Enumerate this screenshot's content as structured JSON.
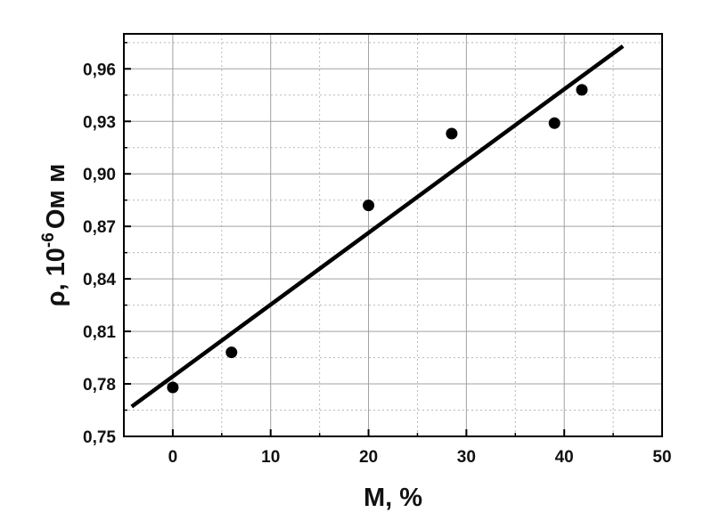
{
  "chart_data": {
    "type": "scatter",
    "title": "",
    "xlabel": "M, %",
    "ylabel": {
      "prefix": "ρ, 10",
      "sup": "-6",
      "suffix": "Ом м"
    },
    "xlim": [
      -5,
      50
    ],
    "ylim": [
      0.75,
      0.98
    ],
    "x_ticks": [
      {
        "value": 0,
        "label": "0"
      },
      {
        "value": 10,
        "label": "10"
      },
      {
        "value": 20,
        "label": "20"
      },
      {
        "value": 30,
        "label": "30"
      },
      {
        "value": 40,
        "label": "40"
      },
      {
        "value": 50,
        "label": "50"
      }
    ],
    "y_ticks": [
      {
        "value": 0.75,
        "label": "0,75"
      },
      {
        "value": 0.78,
        "label": "0,78"
      },
      {
        "value": 0.81,
        "label": "0,81"
      },
      {
        "value": 0.84,
        "label": "0,84"
      },
      {
        "value": 0.87,
        "label": "0,87"
      },
      {
        "value": 0.9,
        "label": "0,90"
      },
      {
        "value": 0.93,
        "label": "0,93"
      },
      {
        "value": 0.96,
        "label": "0,96"
      }
    ],
    "x_minor_grid": [
      -5,
      5,
      15,
      25,
      35,
      45
    ],
    "y_minor_grid": [
      0.765,
      0.795,
      0.825,
      0.855,
      0.885,
      0.915,
      0.945,
      0.975
    ],
    "grid": true,
    "series": [
      {
        "points": [
          {
            "x": 0,
            "y": 0.778
          },
          {
            "x": 6,
            "y": 0.798
          },
          {
            "x": 20,
            "y": 0.882
          },
          {
            "x": 28.5,
            "y": 0.923
          },
          {
            "x": 39,
            "y": 0.929
          },
          {
            "x": 41.8,
            "y": 0.948
          }
        ],
        "color": "#000000"
      }
    ],
    "fit_line": {
      "x1": -4.2,
      "y1": 0.767,
      "x2": 46,
      "y2": 0.973,
      "color": "#000000"
    }
  }
}
